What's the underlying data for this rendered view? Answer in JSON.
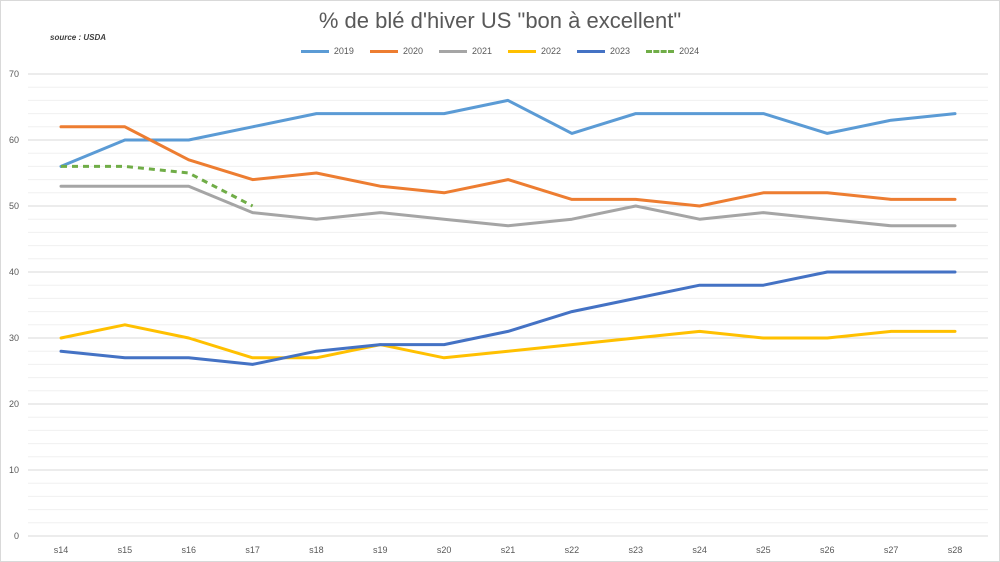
{
  "chart_data": {
    "type": "line",
    "title": "% de blé d'hiver US \"bon à excellent\"",
    "source": "source : USDA",
    "xlabel": "",
    "ylabel": "",
    "ylim": [
      0,
      70
    ],
    "yticks": [
      0,
      10,
      20,
      30,
      40,
      50,
      60,
      70
    ],
    "grid": true,
    "legend_position": "top",
    "categories": [
      "s14",
      "s15",
      "s16",
      "s17",
      "s18",
      "s19",
      "s20",
      "s21",
      "s22",
      "s23",
      "s24",
      "s25",
      "s26",
      "s27",
      "s28"
    ],
    "series": [
      {
        "name": "2019",
        "color": "#5b9bd5",
        "dashed": false,
        "values": [
          56,
          60,
          60,
          62,
          64,
          64,
          64,
          66,
          61,
          64,
          64,
          64,
          61,
          63,
          64
        ]
      },
      {
        "name": "2020",
        "color": "#ed7d31",
        "dashed": false,
        "values": [
          62,
          62,
          57,
          54,
          55,
          53,
          52,
          54,
          51,
          51,
          50,
          52,
          52,
          51,
          51
        ]
      },
      {
        "name": "2021",
        "color": "#a5a5a5",
        "dashed": false,
        "values": [
          53,
          53,
          53,
          49,
          48,
          49,
          48,
          47,
          48,
          50,
          48,
          49,
          48,
          47,
          47
        ]
      },
      {
        "name": "2022",
        "color": "#ffc000",
        "dashed": false,
        "values": [
          30,
          32,
          30,
          27,
          27,
          29,
          27,
          28,
          29,
          30,
          31,
          30,
          30,
          31,
          31
        ]
      },
      {
        "name": "2023",
        "color": "#4472c4",
        "dashed": false,
        "values": [
          28,
          27,
          27,
          26,
          28,
          29,
          29,
          31,
          34,
          36,
          38,
          38,
          40,
          40,
          40
        ]
      },
      {
        "name": "2024",
        "color": "#70ad47",
        "dashed": true,
        "values": [
          56,
          56,
          55,
          50,
          null,
          null,
          null,
          null,
          null,
          null,
          null,
          null,
          null,
          null,
          null
        ]
      }
    ]
  }
}
